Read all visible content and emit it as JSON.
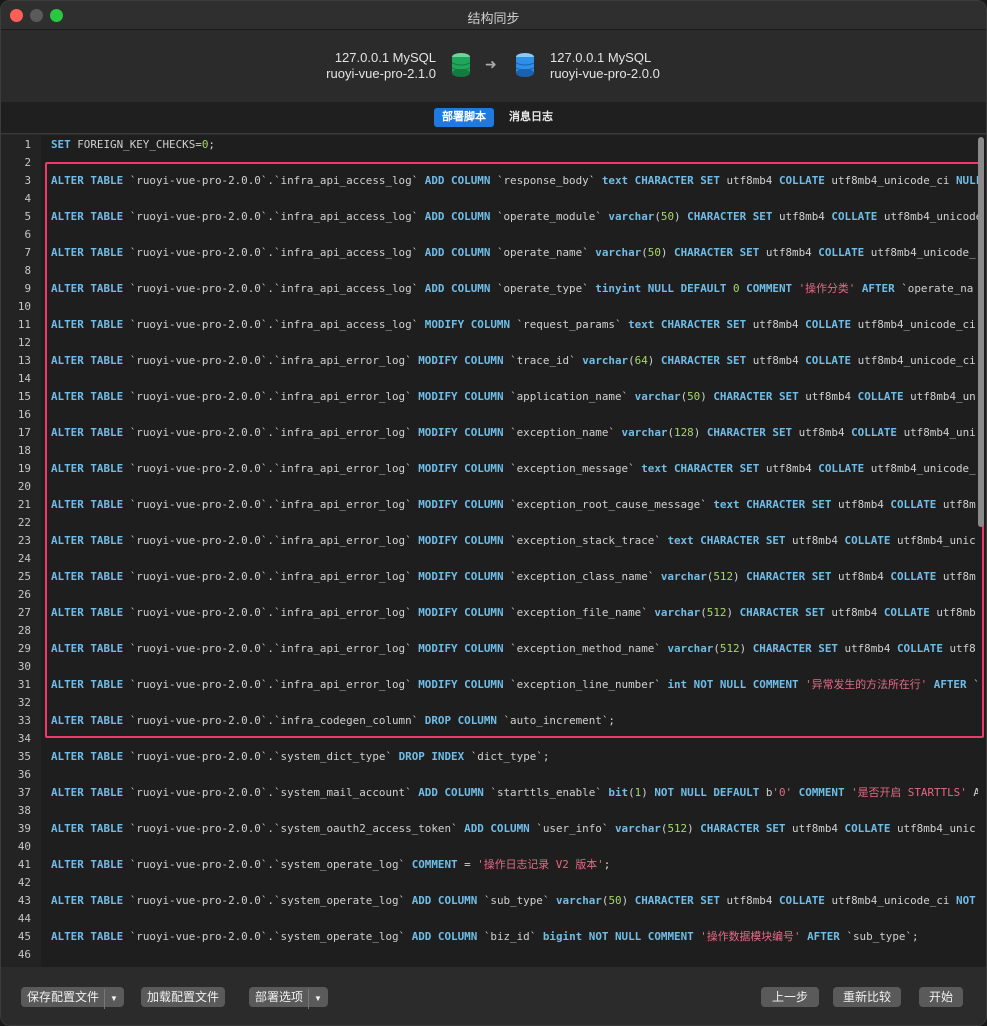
{
  "window": {
    "title": "结构同步"
  },
  "connection": {
    "source": {
      "server": "127.0.0.1 MySQL",
      "database": "ruoyi-vue-pro-2.1.0",
      "color": "#1fa65a"
    },
    "target": {
      "server": "127.0.0.1 MySQL",
      "database": "ruoyi-vue-pro-2.0.0",
      "color": "#2d8fe6"
    }
  },
  "tabs": [
    {
      "label": "部署脚本",
      "active": true
    },
    {
      "label": "消息日志",
      "active": false
    }
  ],
  "editor": {
    "highlight_color": "#f0386b",
    "lines": [
      "SET FOREIGN_KEY_CHECKS=0;",
      "",
      "ALTER TABLE `ruoyi-vue-pro-2.0.0`.`infra_api_access_log` ADD COLUMN `response_body` text CHARACTER SET utf8mb4 COLLATE utf8mb4_unicode_ci NULL",
      "",
      "ALTER TABLE `ruoyi-vue-pro-2.0.0`.`infra_api_access_log` ADD COLUMN `operate_module` varchar(50) CHARACTER SET utf8mb4 COLLATE utf8mb4_unicode",
      "",
      "ALTER TABLE `ruoyi-vue-pro-2.0.0`.`infra_api_access_log` ADD COLUMN `operate_name` varchar(50) CHARACTER SET utf8mb4 COLLATE utf8mb4_unicode_",
      "",
      "ALTER TABLE `ruoyi-vue-pro-2.0.0`.`infra_api_access_log` ADD COLUMN `operate_type` tinyint NULL DEFAULT 0 COMMENT '操作分类' AFTER `operate_na",
      "",
      "ALTER TABLE `ruoyi-vue-pro-2.0.0`.`infra_api_access_log` MODIFY COLUMN `request_params` text CHARACTER SET utf8mb4 COLLATE utf8mb4_unicode_ci",
      "",
      "ALTER TABLE `ruoyi-vue-pro-2.0.0`.`infra_api_error_log` MODIFY COLUMN `trace_id` varchar(64) CHARACTER SET utf8mb4 COLLATE utf8mb4_unicode_ci",
      "",
      "ALTER TABLE `ruoyi-vue-pro-2.0.0`.`infra_api_error_log` MODIFY COLUMN `application_name` varchar(50) CHARACTER SET utf8mb4 COLLATE utf8mb4_un",
      "",
      "ALTER TABLE `ruoyi-vue-pro-2.0.0`.`infra_api_error_log` MODIFY COLUMN `exception_name` varchar(128) CHARACTER SET utf8mb4 COLLATE utf8mb4_uni",
      "",
      "ALTER TABLE `ruoyi-vue-pro-2.0.0`.`infra_api_error_log` MODIFY COLUMN `exception_message` text CHARACTER SET utf8mb4 COLLATE utf8mb4_unicode_",
      "",
      "ALTER TABLE `ruoyi-vue-pro-2.0.0`.`infra_api_error_log` MODIFY COLUMN `exception_root_cause_message` text CHARACTER SET utf8mb4 COLLATE utf8m",
      "",
      "ALTER TABLE `ruoyi-vue-pro-2.0.0`.`infra_api_error_log` MODIFY COLUMN `exception_stack_trace` text CHARACTER SET utf8mb4 COLLATE utf8mb4_unic",
      "",
      "ALTER TABLE `ruoyi-vue-pro-2.0.0`.`infra_api_error_log` MODIFY COLUMN `exception_class_name` varchar(512) CHARACTER SET utf8mb4 COLLATE utf8m",
      "",
      "ALTER TABLE `ruoyi-vue-pro-2.0.0`.`infra_api_error_log` MODIFY COLUMN `exception_file_name` varchar(512) CHARACTER SET utf8mb4 COLLATE utf8mb",
      "",
      "ALTER TABLE `ruoyi-vue-pro-2.0.0`.`infra_api_error_log` MODIFY COLUMN `exception_method_name` varchar(512) CHARACTER SET utf8mb4 COLLATE utf8",
      "",
      "ALTER TABLE `ruoyi-vue-pro-2.0.0`.`infra_api_error_log` MODIFY COLUMN `exception_line_number` int NOT NULL COMMENT '异常发生的方法所在行' AFTER `",
      "",
      "ALTER TABLE `ruoyi-vue-pro-2.0.0`.`infra_codegen_column` DROP COLUMN `auto_increment`;",
      "",
      "ALTER TABLE `ruoyi-vue-pro-2.0.0`.`system_dict_type` DROP INDEX `dict_type`;",
      "",
      "ALTER TABLE `ruoyi-vue-pro-2.0.0`.`system_mail_account` ADD COLUMN `starttls_enable` bit(1) NOT NULL DEFAULT b'0' COMMENT '是否开启 STARTTLS' A",
      "",
      "ALTER TABLE `ruoyi-vue-pro-2.0.0`.`system_oauth2_access_token` ADD COLUMN `user_info` varchar(512) CHARACTER SET utf8mb4 COLLATE utf8mb4_unic",
      "",
      "ALTER TABLE `ruoyi-vue-pro-2.0.0`.`system_operate_log` COMMENT = '操作日志记录 V2 版本';",
      "",
      "ALTER TABLE `ruoyi-vue-pro-2.0.0`.`system_operate_log` ADD COLUMN `sub_type` varchar(50) CHARACTER SET utf8mb4 COLLATE utf8mb4_unicode_ci NOT",
      "",
      "ALTER TABLE `ruoyi-vue-pro-2.0.0`.`system_operate_log` ADD COLUMN `biz_id` bigint NOT NULL COMMENT '操作数据模块编号' AFTER `sub_type`;",
      ""
    ]
  },
  "footer": {
    "save_config": "保存配置文件",
    "load_config": "加载配置文件",
    "deploy_options": "部署选项",
    "back": "上一步",
    "recompare": "重新比较",
    "start": "开始"
  }
}
